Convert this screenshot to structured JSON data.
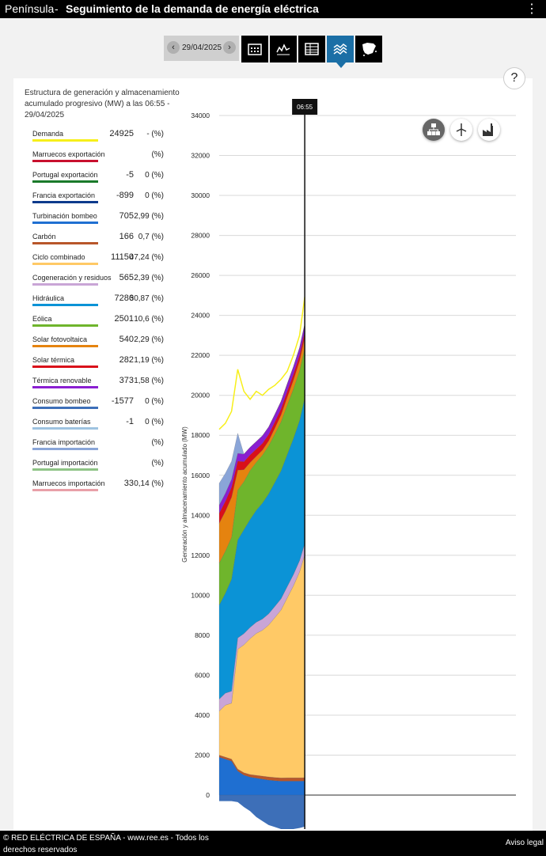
{
  "header": {
    "region": "Península",
    "separator": "-",
    "title": "Seguimiento de la demanda de energía eléctrica",
    "menu_icon": "more-vertical-icon"
  },
  "toolbar": {
    "date": "29/04/2025",
    "views": [
      "calendar-icon",
      "line-chart-icon",
      "table-icon",
      "stacked-area-icon",
      "map-spain-icon"
    ],
    "active_view": "stacked-area-icon"
  },
  "help_label": "?",
  "legend": {
    "title": "Estructura de generación y almacenamiento acumulado progresivo (MW) a las 06:55 - 29/04/2025",
    "items": [
      {
        "name": "Demanda",
        "value": "24925",
        "pct": "- (%)",
        "color": "#f7ef1a"
      },
      {
        "name": "Marruecos exportación",
        "value": "",
        "pct": "(%)",
        "color": "#c8102e"
      },
      {
        "name": "Portugal exportación",
        "value": "-5",
        "pct": "0 (%)",
        "color": "#1a7a2a"
      },
      {
        "name": "Francia exportación",
        "value": "-899",
        "pct": "0 (%)",
        "color": "#0d3a8c"
      },
      {
        "name": "Turbinación bombeo",
        "value": "705",
        "pct": "2,99 (%)",
        "color": "#1f6fd1"
      },
      {
        "name": "Carbón",
        "value": "166",
        "pct": "0,7 (%)",
        "color": "#b8562a"
      },
      {
        "name": "Ciclo combinado",
        "value": "11150",
        "pct": "47,24 (%)",
        "color": "#ffc966"
      },
      {
        "name": "Cogeneración y residuos",
        "value": "565",
        "pct": "2,39 (%)",
        "color": "#c9a5d6"
      },
      {
        "name": "Hidráulica",
        "value": "7286",
        "pct": "30,87 (%)",
        "color": "#0b93d6"
      },
      {
        "name": "Eólica",
        "value": "2501",
        "pct": "10,6 (%)",
        "color": "#6fb52c"
      },
      {
        "name": "Solar fotovoltaica",
        "value": "540",
        "pct": "2,29 (%)",
        "color": "#e5830f"
      },
      {
        "name": "Solar térmica",
        "value": "282",
        "pct": "1,19 (%)",
        "color": "#d9101a"
      },
      {
        "name": "Térmica renovable",
        "value": "373",
        "pct": "1,58 (%)",
        "color": "#8a1fd1"
      },
      {
        "name": "Consumo bombeo",
        "value": "-1577",
        "pct": "0 (%)",
        "color": "#3d6fb8"
      },
      {
        "name": "Consumo baterías",
        "value": "-1",
        "pct": "0 (%)",
        "color": "#9fc3e0"
      },
      {
        "name": "Francia importación",
        "value": "",
        "pct": "(%)",
        "color": "#8aa5d8"
      },
      {
        "name": "Portugal importación",
        "value": "",
        "pct": "(%)",
        "color": "#8fc486"
      },
      {
        "name": "Marruecos importación",
        "value": "33",
        "pct": "0,14 (%)",
        "color": "#e8a0a8"
      }
    ]
  },
  "chart_controls": [
    "generation-structure-icon",
    "renewable-wind-icon",
    "factory-icon"
  ],
  "chart_data": {
    "type": "area",
    "ylabel": "Generación y almacenamiento acumulado (MW)",
    "ylim": [
      -1800,
      34000
    ],
    "yticks": [
      0,
      2000,
      4000,
      6000,
      8000,
      10000,
      12000,
      14000,
      16000,
      18000,
      20000,
      22000,
      24000,
      26000,
      28000,
      30000,
      32000,
      34000
    ],
    "cursor_label": "06:55",
    "x": [
      0,
      0.5,
      1,
      1.5,
      2,
      2.5,
      3,
      3.5,
      4,
      4.5,
      5,
      5.5,
      6,
      6.5,
      6.92
    ],
    "demand": [
      18300,
      18600,
      19200,
      21300,
      20200,
      19800,
      20200,
      20000,
      20300,
      20500,
      20800,
      21200,
      22000,
      23000,
      24925
    ],
    "series": [
      {
        "name": "Consumo bombeo",
        "color": "#3d6fb8",
        "values": [
          -300,
          -300,
          -300,
          -350,
          -600,
          -800,
          -1100,
          -1300,
          -1500,
          -1600,
          -1700,
          -1700,
          -1700,
          -1650,
          -1577
        ]
      },
      {
        "name": "Turbinación bombeo",
        "color": "#1f6fd1",
        "values": [
          1900,
          1800,
          1700,
          1200,
          1000,
          900,
          850,
          800,
          750,
          720,
          700,
          700,
          700,
          700,
          705
        ]
      },
      {
        "name": "Carbón",
        "color": "#b8562a",
        "values": [
          100,
          100,
          100,
          100,
          120,
          130,
          140,
          150,
          160,
          160,
          160,
          165,
          165,
          165,
          166
        ]
      },
      {
        "name": "Ciclo combinado",
        "color": "#ffc966",
        "values": [
          2200,
          2600,
          2800,
          6000,
          6400,
          6800,
          7100,
          7300,
          7600,
          8000,
          8400,
          9000,
          9600,
          10300,
          11150
        ]
      },
      {
        "name": "Cogeneración y residuos",
        "color": "#c9a5d6",
        "values": [
          600,
          600,
          600,
          560,
          560,
          560,
          560,
          560,
          560,
          560,
          560,
          565,
          565,
          565,
          565
        ]
      },
      {
        "name": "Hidráulica",
        "color": "#0b93d6",
        "values": [
          4700,
          5000,
          5600,
          4900,
          5200,
          5400,
          5600,
          5800,
          6000,
          6200,
          6400,
          6600,
          6800,
          7000,
          7286
        ]
      },
      {
        "name": "Eólica",
        "color": "#6fb52c",
        "values": [
          2100,
          2100,
          2100,
          2500,
          2400,
          2450,
          2400,
          2400,
          2400,
          2420,
          2450,
          2470,
          2480,
          2490,
          2501
        ]
      },
      {
        "name": "Solar fotovoltaica",
        "color": "#e5830f",
        "values": [
          2000,
          2000,
          2000,
          1000,
          600,
          400,
          300,
          250,
          250,
          300,
          350,
          400,
          450,
          500,
          540
        ]
      },
      {
        "name": "Solar térmica",
        "color": "#d9101a",
        "values": [
          500,
          500,
          500,
          450,
          400,
          380,
          360,
          340,
          320,
          310,
          300,
          295,
          290,
          285,
          282
        ]
      },
      {
        "name": "Térmica renovable",
        "color": "#8a1fd1",
        "values": [
          400,
          400,
          400,
          390,
          380,
          380,
          380,
          380,
          375,
          375,
          375,
          375,
          375,
          373,
          373
        ]
      },
      {
        "name": "Francia importación",
        "color": "#8aa5d8",
        "values": [
          1100,
          1000,
          900,
          1000,
          0,
          0,
          0,
          0,
          0,
          0,
          0,
          0,
          0,
          0,
          0
        ]
      }
    ]
  }
}
